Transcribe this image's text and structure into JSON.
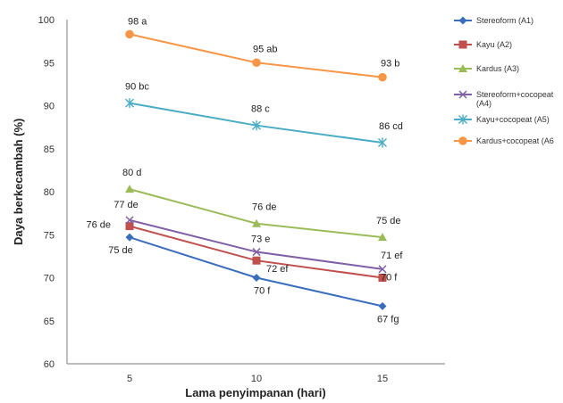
{
  "chart_data": {
    "type": "line",
    "xlabel": "Lama penyimpanan (hari)",
    "ylabel": "Daya berkecambah (%)",
    "x": [
      5,
      10,
      15
    ],
    "ylim": [
      60,
      100
    ],
    "yticks": [
      60,
      65,
      70,
      75,
      80,
      85,
      90,
      95,
      100
    ],
    "grid": false,
    "legend_position": "right",
    "series": [
      {
        "name": "Stereoform (A1)",
        "values": [
          74.7,
          70,
          66.7
        ],
        "labels": [
          "75 de",
          "70 f",
          "67 fg"
        ],
        "color": "#3a6ebc",
        "marker": "diamond"
      },
      {
        "name": "Kayu (A2)",
        "values": [
          76,
          72,
          70
        ],
        "labels": [
          "76 de",
          "72 ef",
          "70 f"
        ],
        "color": "#c0504d",
        "marker": "square"
      },
      {
        "name": "Kardus (A3)",
        "values": [
          80.3,
          76.3,
          74.7
        ],
        "labels": [
          "80 d",
          "76 de",
          "75 de"
        ],
        "color": "#9bbb59",
        "marker": "triangle"
      },
      {
        "name": "Stereoform+cocopeat (A4)",
        "values": [
          76.7,
          73,
          71
        ],
        "labels": [
          "77 de",
          "73 e",
          "71 ef"
        ],
        "color": "#7f5fa5",
        "marker": "x"
      },
      {
        "name": "Kayu+cocopeat (A5)",
        "values": [
          90.3,
          87.7,
          85.7
        ],
        "labels": [
          "90 bc",
          "88 c",
          "86 cd"
        ],
        "color": "#4bacc6",
        "marker": "star"
      },
      {
        "name": "Kardus+cocopeat (A6",
        "values": [
          98.3,
          95,
          93.3
        ],
        "labels": [
          "98 a",
          "95 ab",
          "93 b"
        ],
        "color": "#f79646",
        "marker": "circle"
      }
    ]
  }
}
